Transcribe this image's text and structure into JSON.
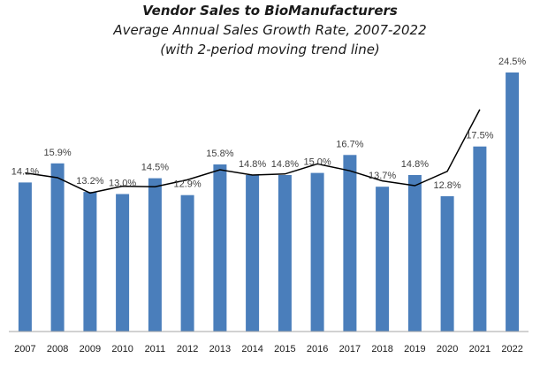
{
  "chart_data": {
    "type": "bar",
    "title": "Vendor Sales to BioManufacturers",
    "subtitle": "Average Annual Sales Growth Rate, 2007-2022",
    "subtitle2": "(with 2-period moving trend line)",
    "xlabel": "",
    "ylabel": "",
    "ylim": [
      0,
      24.5
    ],
    "grid": false,
    "categories": [
      "2007",
      "2008",
      "2009",
      "2010",
      "2011",
      "2012",
      "2013",
      "2014",
      "2015",
      "2016",
      "2017",
      "2018",
      "2019",
      "2020",
      "2021",
      "2022"
    ],
    "series": [
      {
        "name": "Average Annual Sales Growth Rate",
        "type": "bar",
        "color": "#4a7ebb",
        "values": [
          14.1,
          15.9,
          13.2,
          13.0,
          14.5,
          12.9,
          15.8,
          14.8,
          14.8,
          15.0,
          16.7,
          13.7,
          14.8,
          12.8,
          17.5,
          24.5
        ],
        "data_labels": [
          "14.1%",
          "15.9%",
          "13.2%",
          "13.0%",
          "14.5%",
          "12.9%",
          "15.8%",
          "14.8%",
          "14.8%",
          "15.0%",
          "16.7%",
          "13.7%",
          "14.8%",
          "12.8%",
          "17.5%",
          "24.5%"
        ]
      },
      {
        "name": "2-period moving trend line",
        "type": "line",
        "color": "#000000",
        "values": [
          15.0,
          14.55,
          13.1,
          13.75,
          13.7,
          14.35,
          15.3,
          14.8,
          14.9,
          15.85,
          15.2,
          14.25,
          13.8,
          15.15,
          21.0,
          null
        ]
      }
    ]
  }
}
